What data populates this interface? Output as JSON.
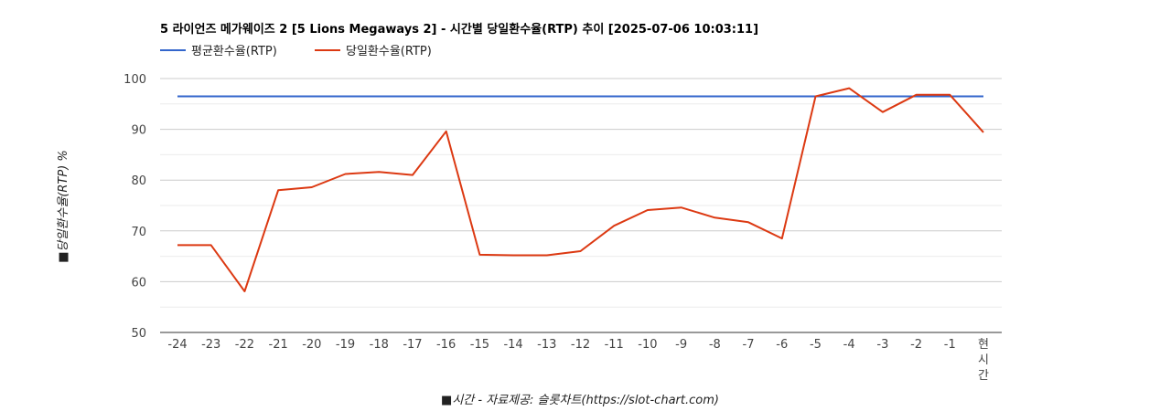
{
  "chart_data": {
    "type": "line",
    "title": "5 라이언즈 메가웨이즈 2 [5 Lions Megaways 2] - 시간별 당일환수율(RTP) 추이 [2025-07-06 10:03:11]",
    "xlabel": "■시간 - 자료제공: 슬롯차트(https://slot-chart.com)",
    "ylabel": "■당일환수율(RTP) %",
    "ylim": [
      50,
      100
    ],
    "yticks": [
      50,
      60,
      70,
      80,
      90,
      100
    ],
    "grid": true,
    "legend_position": "top-left",
    "categories": [
      "-24",
      "-23",
      "-22",
      "-21",
      "-20",
      "-19",
      "-18",
      "-17",
      "-16",
      "-15",
      "-14",
      "-13",
      "-12",
      "-11",
      "-10",
      "-9",
      "-8",
      "-7",
      "-6",
      "-5",
      "-4",
      "-3",
      "-2",
      "-1",
      "현시간"
    ],
    "series": [
      {
        "name": "평균환수율(RTP)",
        "color": "#3366cc",
        "values": [
          96.5,
          96.5,
          96.5,
          96.5,
          96.5,
          96.5,
          96.5,
          96.5,
          96.5,
          96.5,
          96.5,
          96.5,
          96.5,
          96.5,
          96.5,
          96.5,
          96.5,
          96.5,
          96.5,
          96.5,
          96.5,
          96.5,
          96.5,
          96.5,
          96.5
        ]
      },
      {
        "name": "당일환수율(RTP)",
        "color": "#dc3912",
        "values": [
          67.2,
          67.2,
          58.1,
          78.0,
          78.6,
          81.2,
          81.6,
          81.0,
          89.6,
          65.3,
          65.2,
          65.2,
          66.0,
          71.0,
          74.1,
          74.6,
          72.6,
          71.7,
          68.5,
          96.5,
          98.1,
          93.4,
          96.8,
          96.8,
          89.4
        ]
      }
    ]
  }
}
